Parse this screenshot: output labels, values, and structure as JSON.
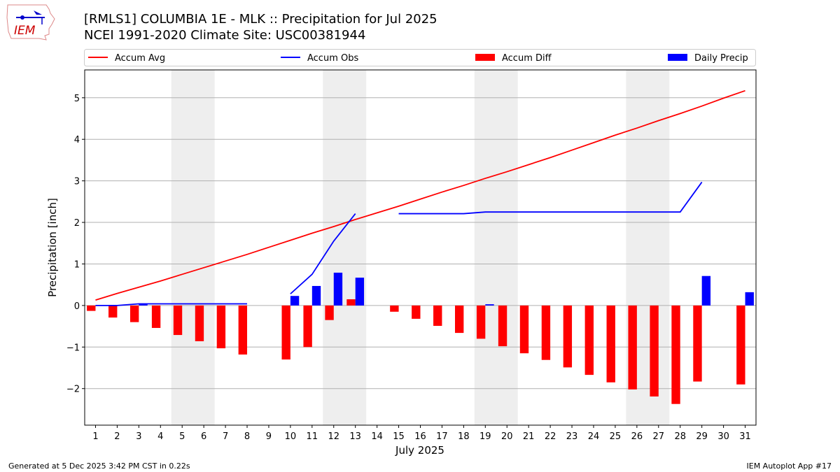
{
  "header": {
    "title_line1": "[RMLS1] COLUMBIA 1E - MLK :: Precipitation for Jul 2025",
    "title_line2": "NCEI 1991-2020 Climate Site: USC00381944",
    "logo_text": "IEM"
  },
  "footer": {
    "generated": "Generated at 5 Dec 2025 3:42 PM CST in 0.22s",
    "app": "IEM Autoplot App #17"
  },
  "chart_data": {
    "type": "bar",
    "xlabel": "July 2025",
    "ylabel": "Precipitation [inch]",
    "xlim": [
      0.5,
      31.5
    ],
    "ylim": [
      -2.88,
      5.67
    ],
    "yticks": [
      -2,
      -1,
      0,
      1,
      2,
      3,
      4,
      5
    ],
    "xticks": [
      1,
      2,
      3,
      4,
      5,
      6,
      7,
      8,
      9,
      10,
      11,
      12,
      13,
      14,
      15,
      16,
      17,
      18,
      19,
      20,
      21,
      22,
      23,
      24,
      25,
      26,
      27,
      28,
      29,
      30,
      31
    ],
    "grid": "y",
    "legend_placement": "top",
    "weekend_shading": [
      [
        5,
        6
      ],
      [
        12,
        13
      ],
      [
        19,
        20
      ],
      [
        26,
        27
      ]
    ],
    "colors": {
      "avg": "#ff0000",
      "obs": "#0000ff",
      "diff": "#ff0000",
      "daily": "#0000ff",
      "shade": "#eeeeee"
    },
    "series": [
      {
        "name": "Accum Avg",
        "kind": "line",
        "values": [
          0.13,
          0.29,
          0.44,
          0.59,
          0.75,
          0.91,
          1.07,
          1.23,
          1.4,
          1.57,
          1.74,
          1.9,
          2.07,
          2.23,
          2.39,
          2.56,
          2.73,
          2.89,
          3.06,
          3.22,
          3.39,
          3.56,
          3.74,
          3.92,
          4.1,
          4.27,
          4.45,
          4.62,
          4.8,
          4.99,
          5.17
        ]
      },
      {
        "name": "Accum Obs",
        "kind": "line",
        "values": [
          0,
          0,
          0.04,
          0.04,
          0.04,
          0.04,
          0.04,
          0.04,
          null,
          0.28,
          0.75,
          1.55,
          2.21,
          null,
          2.21,
          2.21,
          2.21,
          2.21,
          2.25,
          2.25,
          2.25,
          2.25,
          2.25,
          2.25,
          2.25,
          2.25,
          2.25,
          2.25,
          2.97,
          null,
          null
        ]
      },
      {
        "name": "Accum Diff",
        "kind": "bar",
        "values": [
          -0.13,
          -0.29,
          -0.4,
          -0.54,
          -0.71,
          -0.86,
          -1.03,
          -1.18,
          null,
          -1.3,
          -1.0,
          -0.35,
          0.15,
          null,
          -0.15,
          -0.32,
          -0.49,
          -0.66,
          -0.8,
          -0.98,
          -1.15,
          -1.31,
          -1.49,
          -1.67,
          -1.85,
          -2.02,
          -2.19,
          -2.37,
          -1.83,
          null,
          -1.9
        ]
      },
      {
        "name": "Daily Precip",
        "kind": "bar",
        "values": [
          0,
          0,
          0.04,
          0,
          0,
          0,
          0,
          0,
          null,
          0.23,
          0.47,
          0.79,
          0.67,
          null,
          0,
          0,
          0,
          0,
          0.03,
          0,
          0,
          0,
          0,
          0,
          0,
          0,
          0,
          0,
          0.71,
          null,
          0.32
        ]
      }
    ]
  }
}
